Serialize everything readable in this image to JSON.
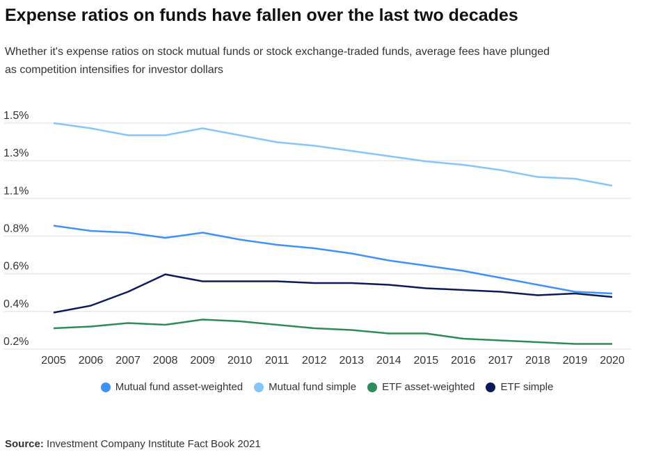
{
  "chart_data": {
    "type": "line",
    "title": "Expense ratios on funds have fallen over the last two decades",
    "subtitle": "Whether it's expense ratios on stock mutual funds or stock exchange-traded funds, average fees have plunged as competition intensifies for investor dollars",
    "xlabel": "",
    "ylabel": "",
    "x": [
      "2005",
      "2006",
      "2007",
      "2008",
      "2009",
      "2010",
      "2011",
      "2012",
      "2013",
      "2014",
      "2015",
      "2016",
      "2017",
      "2018",
      "2019",
      "2020"
    ],
    "ylim": [
      0.2,
      1.5
    ],
    "y_tick_labels": [
      "0.2%",
      "0.4%",
      "0.6%",
      "0.8%",
      "1.1%",
      "1.3%",
      "1.5%"
    ],
    "grid": true,
    "legend_position": "bottom",
    "series": [
      {
        "name": "Mutual fund asset-weighted",
        "color": "#3f92f5",
        "values": [
          0.91,
          0.88,
          0.87,
          0.84,
          0.87,
          0.83,
          0.8,
          0.78,
          0.75,
          0.71,
          0.68,
          0.65,
          0.61,
          0.57,
          0.53,
          0.52
        ]
      },
      {
        "name": "Mutual fund simple",
        "color": "#84c5fb",
        "values": [
          1.5,
          1.47,
          1.43,
          1.43,
          1.47,
          1.43,
          1.39,
          1.37,
          1.34,
          1.31,
          1.28,
          1.26,
          1.23,
          1.19,
          1.18,
          1.14
        ]
      },
      {
        "name": "ETF asset-weighted",
        "color": "#2e8b57",
        "values": [
          0.32,
          0.33,
          0.35,
          0.34,
          0.37,
          0.36,
          0.34,
          0.32,
          0.31,
          0.29,
          0.29,
          0.26,
          0.25,
          0.24,
          0.23,
          0.23
        ]
      },
      {
        "name": "ETF simple",
        "color": "#0b1a5c",
        "values": [
          0.41,
          0.45,
          0.53,
          0.63,
          0.59,
          0.59,
          0.59,
          0.58,
          0.58,
          0.57,
          0.55,
          0.54,
          0.53,
          0.51,
          0.52,
          0.5
        ]
      }
    ]
  },
  "source": {
    "label": "Source:",
    "text": "Investment Company Institute Fact Book 2021"
  }
}
